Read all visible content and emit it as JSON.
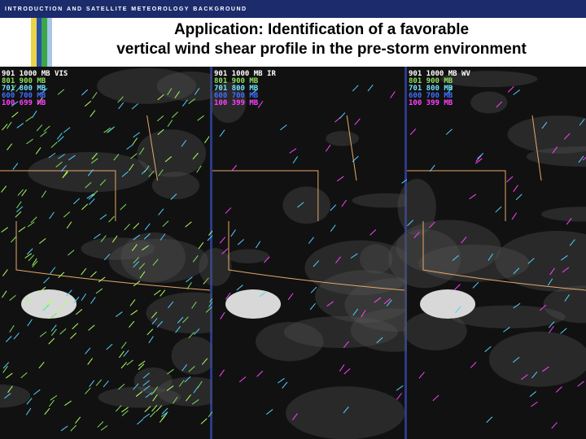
{
  "header": {
    "title": "Introduction and Satellite Meteorology Background"
  },
  "title": {
    "line1": "Application: Identification of a favorable",
    "line2": "vertical wind shear profile in the pre-storm environment"
  },
  "panels": [
    {
      "legend": [
        "901 1000 MB VIS",
        "801 900 MB",
        "701 800 MB",
        "600 700 MB",
        "100 699 MB"
      ]
    },
    {
      "legend": [
        "901 1000 MB IR",
        "801 900 MB",
        "701 800 MB",
        "600 700 MB",
        "100 399 MB"
      ]
    },
    {
      "legend": [
        "901 1000 MB WV",
        "801 900 MB",
        "701 800 MB",
        "600 700 MB",
        "100 399 MB"
      ]
    }
  ]
}
